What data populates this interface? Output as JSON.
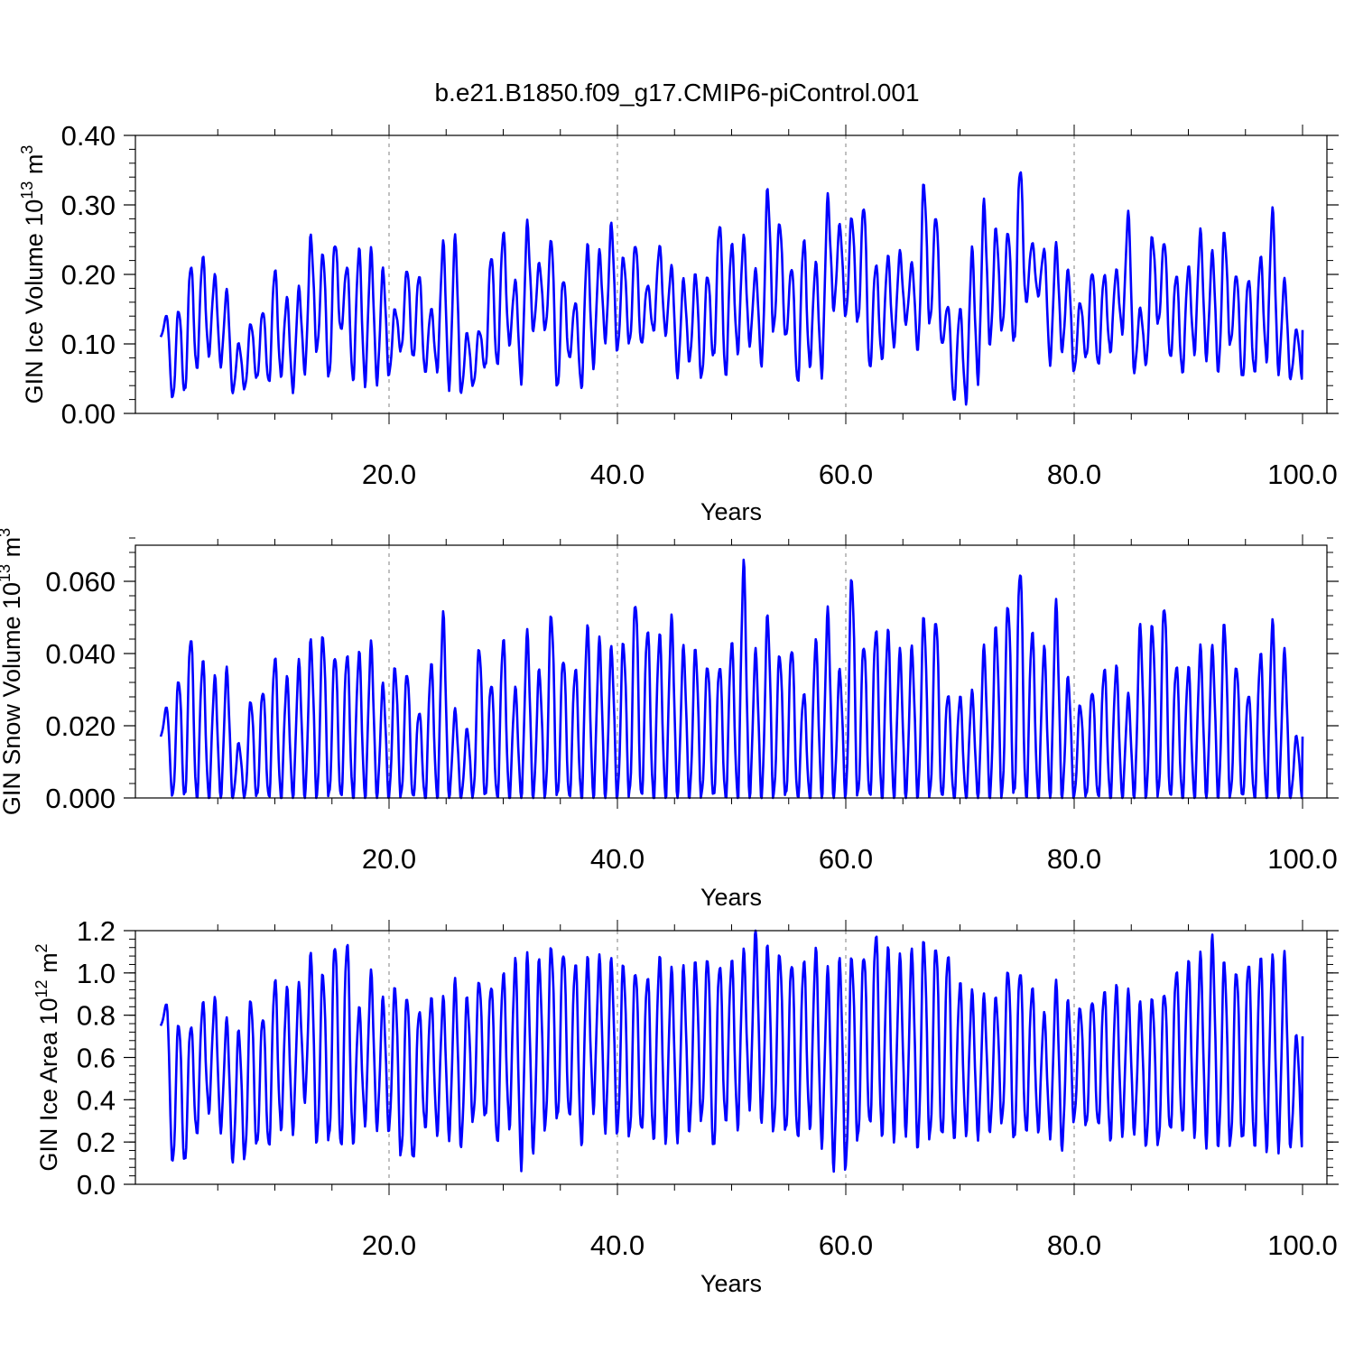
{
  "figure_title": "b.e21.B1850.f09_g17.CMIP6-piControl.001",
  "colors": {
    "series": "#0000ff",
    "axes": "#000000",
    "grid": "#808080"
  },
  "chart_data": [
    {
      "type": "line",
      "xlabel": "Years",
      "ylabel": {
        "text": "GIN Ice Volume 10",
        "sup": "13",
        "unit": " m",
        "unit_sup": "3"
      },
      "xlim": [
        0,
        100
      ],
      "ylim": [
        0,
        0.4
      ],
      "xticks": [
        {
          "v": 20,
          "label": "20.0"
        },
        {
          "v": 40,
          "label": "40.0"
        },
        {
          "v": 60,
          "label": "60.0"
        },
        {
          "v": 80,
          "label": "80.0"
        },
        {
          "v": 100,
          "label": "100.0"
        }
      ],
      "yticks": [
        {
          "v": 0,
          "label": "0.00"
        },
        {
          "v": 0.1,
          "label": "0.10"
        },
        {
          "v": 0.2,
          "label": "0.20"
        },
        {
          "v": 0.3,
          "label": "0.30"
        },
        {
          "v": 0.4,
          "label": "0.40"
        }
      ],
      "y_minor_step": 0.02,
      "x_minor_step": 5,
      "vgrid": [
        20,
        40,
        60,
        80
      ],
      "series": [
        {
          "color": "#0000ff",
          "yearly_max": [
            0.14,
            0.15,
            0.215,
            0.225,
            0.197,
            0.175,
            0.1,
            0.13,
            0.148,
            0.207,
            0.165,
            0.178,
            0.253,
            0.23,
            0.248,
            0.212,
            0.235,
            0.232,
            0.205,
            0.15,
            0.208,
            0.2,
            0.15,
            0.243,
            0.25,
            0.115,
            0.12,
            0.228,
            0.26,
            0.19,
            0.27,
            0.215,
            0.25,
            0.195,
            0.16,
            0.24,
            0.23,
            0.27,
            0.225,
            0.245,
            0.185,
            0.24,
            0.21,
            0.19,
            0.2,
            0.2,
            0.275,
            0.243,
            0.252,
            0.205,
            0.32,
            0.275,
            0.21,
            0.25,
            0.215,
            0.307,
            0.27,
            0.282,
            0.3,
            0.215,
            0.225,
            0.23,
            0.215,
            0.33,
            0.285,
            0.155,
            0.15,
            0.233,
            0.3,
            0.265,
            0.262,
            0.355,
            0.245,
            0.235,
            0.24,
            0.205,
            0.16,
            0.205,
            0.2,
            0.205,
            0.285,
            0.15,
            0.255,
            0.248,
            0.2,
            0.21,
            0.26,
            0.23,
            0.26,
            0.2,
            0.195,
            0.225,
            0.29,
            0.19,
            0.12
          ],
          "yearly_min": [
            0.11,
            0.02,
            0.03,
            0.065,
            0.085,
            0.07,
            0.03,
            0.035,
            0.05,
            0.045,
            0.055,
            0.035,
            0.06,
            0.09,
            0.05,
            0.12,
            0.05,
            0.045,
            0.045,
            0.055,
            0.09,
            0.08,
            0.06,
            0.065,
            0.04,
            0.03,
            0.04,
            0.065,
            0.07,
            0.1,
            0.05,
            0.12,
            0.12,
            0.035,
            0.08,
            0.04,
            0.07,
            0.105,
            0.09,
            0.1,
            0.1,
            0.12,
            0.115,
            0.055,
            0.075,
            0.05,
            0.08,
            0.055,
            0.09,
            0.1,
            0.07,
            0.12,
            0.11,
            0.045,
            0.07,
            0.06,
            0.15,
            0.14,
            0.13,
            0.065,
            0.08,
            0.1,
            0.13,
            0.09,
            0.13,
            0.1,
            0.02,
            0.02,
            0.05,
            0.1,
            0.12,
            0.1,
            0.16,
            0.17,
            0.075,
            0.09,
            0.06,
            0.08,
            0.07,
            0.09,
            0.12,
            0.06,
            0.07,
            0.13,
            0.08,
            0.06,
            0.09,
            0.08,
            0.06,
            0.1,
            0.05,
            0.06,
            0.08,
            0.06,
            0.05
          ]
        }
      ]
    },
    {
      "type": "line",
      "xlabel": "Years",
      "ylabel": {
        "text": "GIN Snow Volume 10",
        "sup": "13",
        "unit": " m",
        "unit_sup": "3"
      },
      "xlim": [
        0,
        100
      ],
      "ylim": [
        0,
        0.07
      ],
      "xticks": [
        {
          "v": 20,
          "label": "20.0"
        },
        {
          "v": 40,
          "label": "40.0"
        },
        {
          "v": 60,
          "label": "60.0"
        },
        {
          "v": 80,
          "label": "80.0"
        },
        {
          "v": 100,
          "label": "100.0"
        }
      ],
      "yticks": [
        {
          "v": 0,
          "label": "0.000"
        },
        {
          "v": 0.02,
          "label": "0.020"
        },
        {
          "v": 0.04,
          "label": "0.040"
        },
        {
          "v": 0.06,
          "label": "0.060"
        }
      ],
      "y_minor_step": 0.004,
      "x_minor_step": 5,
      "vgrid": [
        20,
        40,
        60,
        80
      ],
      "series": [
        {
          "color": "#0000ff",
          "yearly_max": [
            0.025,
            0.033,
            0.045,
            0.038,
            0.033,
            0.035,
            0.015,
            0.027,
            0.03,
            0.039,
            0.033,
            0.037,
            0.043,
            0.045,
            0.04,
            0.04,
            0.04,
            0.042,
            0.031,
            0.036,
            0.035,
            0.024,
            0.037,
            0.05,
            0.024,
            0.019,
            0.042,
            0.032,
            0.044,
            0.03,
            0.045,
            0.035,
            0.051,
            0.039,
            0.036,
            0.047,
            0.043,
            0.041,
            0.043,
            0.055,
            0.047,
            0.045,
            0.049,
            0.041,
            0.041,
            0.037,
            0.037,
            0.043,
            0.064,
            0.04,
            0.05,
            0.04,
            0.042,
            0.029,
            0.043,
            0.051,
            0.035,
            0.061,
            0.043,
            0.047,
            0.046,
            0.04,
            0.041,
            0.05,
            0.05,
            0.029,
            0.028,
            0.029,
            0.041,
            0.047,
            0.054,
            0.064,
            0.046,
            0.041,
            0.053,
            0.033,
            0.026,
            0.03,
            0.036,
            0.036,
            0.028,
            0.047,
            0.048,
            0.054,
            0.037,
            0.036,
            0.041,
            0.041,
            0.048,
            0.037,
            0.029,
            0.04,
            0.048,
            0.04,
            0.017
          ],
          "yearly_min": [
            0.017,
            0,
            0,
            0,
            0,
            0,
            0,
            0,
            0,
            0,
            0,
            0,
            0,
            0,
            0,
            0,
            0,
            0,
            0,
            0,
            0,
            0,
            0,
            0,
            0,
            0,
            0,
            0,
            0,
            0,
            0,
            0,
            0,
            0,
            0,
            0,
            0,
            0,
            0,
            0,
            0,
            0,
            0,
            0,
            0,
            0,
            0,
            0,
            0,
            0,
            0,
            0,
            0,
            0,
            0,
            0,
            0,
            0,
            0,
            0,
            0,
            0,
            0,
            0,
            0,
            0,
            0,
            0,
            0,
            0,
            0,
            0,
            0,
            0,
            0,
            0,
            0,
            0,
            0,
            0,
            0,
            0,
            0,
            0,
            0,
            0,
            0,
            0,
            0,
            0,
            0,
            0,
            0,
            0,
            0
          ]
        }
      ]
    },
    {
      "type": "line",
      "xlabel": "Years",
      "ylabel": {
        "text": "GIN Ice Area 10",
        "sup": "12",
        "unit": " m",
        "unit_sup": "2"
      },
      "xlim": [
        0,
        100
      ],
      "ylim": [
        0,
        1.2
      ],
      "xticks": [
        {
          "v": 20,
          "label": "20.0"
        },
        {
          "v": 40,
          "label": "40.0"
        },
        {
          "v": 60,
          "label": "60.0"
        },
        {
          "v": 80,
          "label": "80.0"
        },
        {
          "v": 100,
          "label": "100.0"
        }
      ],
      "yticks": [
        {
          "v": 0,
          "label": "0.0"
        },
        {
          "v": 0.2,
          "label": "0.2"
        },
        {
          "v": 0.4,
          "label": "0.4"
        },
        {
          "v": 0.6,
          "label": "0.6"
        },
        {
          "v": 0.8,
          "label": "0.8"
        },
        {
          "v": 1.0,
          "label": "1.0"
        },
        {
          "v": 1.2,
          "label": "1.2"
        }
      ],
      "y_minor_step": 0.04,
      "x_minor_step": 5,
      "vgrid": [
        20,
        40,
        60,
        80
      ],
      "series": [
        {
          "color": "#0000ff",
          "yearly_max": [
            0.85,
            0.77,
            0.76,
            0.86,
            0.87,
            0.77,
            0.72,
            0.88,
            0.8,
            0.97,
            0.92,
            0.93,
            1.08,
            1.0,
            1.15,
            1.15,
            0.83,
            0.99,
            0.87,
            0.93,
            0.9,
            0.83,
            0.88,
            0.87,
            0.95,
            0.88,
            0.97,
            0.95,
            1.0,
            1.05,
            1.06,
            1.05,
            1.13,
            1.11,
            1.05,
            1.06,
            1.06,
            1.05,
            1.04,
            1.02,
            0.99,
            1.07,
            1.0,
            1.01,
            1.05,
            1.08,
            1.05,
            1.06,
            1.09,
            1.19,
            1.12,
            1.1,
            1.06,
            1.06,
            1.1,
            1.0,
            1.05,
            1.08,
            1.1,
            1.19,
            1.11,
            1.06,
            1.09,
            1.15,
            1.14,
            1.1,
            0.95,
            0.9,
            0.88,
            0.88,
            1.02,
            1.02,
            0.93,
            0.8,
            0.94,
            0.86,
            0.84,
            0.88,
            0.92,
            0.93,
            0.9,
            0.85,
            0.88,
            0.92,
            1.02,
            1.05,
            1.07,
            1.15,
            1.05,
            1.02,
            1.06,
            1.07,
            1.06,
            1.07,
            0.7
          ],
          "yearly_min": [
            0.75,
            0.09,
            0.1,
            0.24,
            0.35,
            0.26,
            0.11,
            0.12,
            0.18,
            0.18,
            0.27,
            0.26,
            0.4,
            0.19,
            0.2,
            0.17,
            0.2,
            0.3,
            0.27,
            0.25,
            0.13,
            0.11,
            0.27,
            0.25,
            0.23,
            0.18,
            0.3,
            0.31,
            0.2,
            0.28,
            0.1,
            0.16,
            0.26,
            0.3,
            0.32,
            0.2,
            0.36,
            0.26,
            0.24,
            0.22,
            0.25,
            0.22,
            0.22,
            0.22,
            0.25,
            0.3,
            0.16,
            0.3,
            0.28,
            0.38,
            0.3,
            0.25,
            0.24,
            0.22,
            0.28,
            0.2,
            0.08,
            0.07,
            0.2,
            0.28,
            0.24,
            0.23,
            0.25,
            0.17,
            0.21,
            0.22,
            0.22,
            0.25,
            0.23,
            0.25,
            0.29,
            0.2,
            0.25,
            0.26,
            0.24,
            0.17,
            0.3,
            0.27,
            0.28,
            0.22,
            0.25,
            0.25,
            0.18,
            0.18,
            0.25,
            0.26,
            0.25,
            0.2,
            0.18,
            0.18,
            0.2,
            0.18,
            0.18,
            0.18,
            0.18
          ]
        }
      ]
    }
  ]
}
